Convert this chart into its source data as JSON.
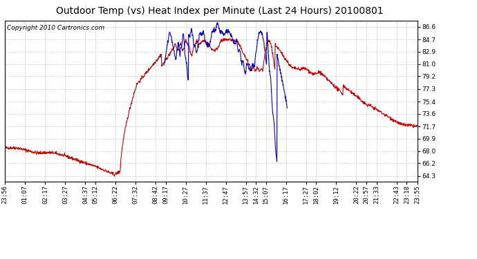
{
  "title": "Outdoor Temp (vs) Heat Index per Minute (Last 24 Hours) 20100801",
  "copyright": "Copyright 2010 Cartronics.com",
  "background_color": "#ffffff",
  "plot_bg_color": "#ffffff",
  "grid_color": "#aaaaaa",
  "red_color": "#cc0000",
  "blue_color": "#0000cc",
  "yticks": [
    64.3,
    66.2,
    68.0,
    69.9,
    71.7,
    73.6,
    75.4,
    77.3,
    79.2,
    81.0,
    82.9,
    84.7,
    86.6
  ],
  "ylim": [
    63.5,
    87.5
  ],
  "xtick_labels": [
    "23:56",
    "01:07",
    "02:17",
    "03:27",
    "04:37",
    "05:12",
    "06:22",
    "07:32",
    "08:42",
    "09:17",
    "10:27",
    "11:37",
    "12:47",
    "13:57",
    "14:32",
    "15:07",
    "16:17",
    "17:27",
    "18:02",
    "19:12",
    "20:22",
    "20:57",
    "21:33",
    "22:43",
    "23:18",
    "23:55"
  ],
  "title_fontsize": 10,
  "axis_fontsize": 6.5,
  "copyright_fontsize": 6.5
}
